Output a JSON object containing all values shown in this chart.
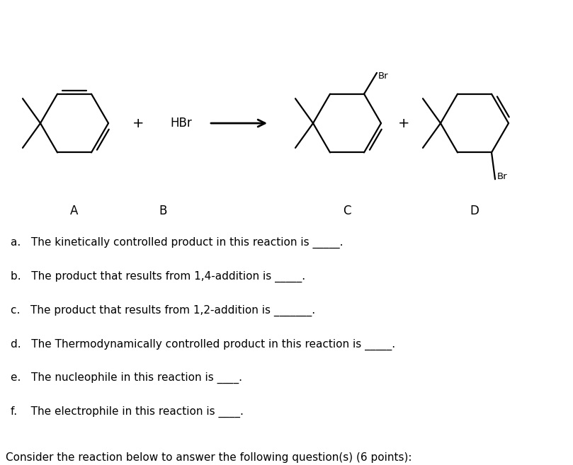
{
  "title": "Consider the reaction below to answer the following question(s) (6 points):",
  "title_fontsize": 11,
  "questions": [
    "a.   The kinetically controlled product in this reaction is _____.  ",
    "b.   The product that results from 1,4-addition is _____.  ",
    "c.   The product that results from 1,2-addition is _______.  ",
    "d.   The Thermodynamically controlled product in this reaction is _____.  ",
    "e.   The nucleophile in this reaction is ____.  ",
    "f.    The electrophile in this reaction is ____.  "
  ],
  "labels": [
    "A",
    "B",
    "C",
    "D"
  ],
  "background_color": "#ffffff",
  "text_color": "#000000",
  "line_color": "#000000",
  "question_fontsize": 11
}
